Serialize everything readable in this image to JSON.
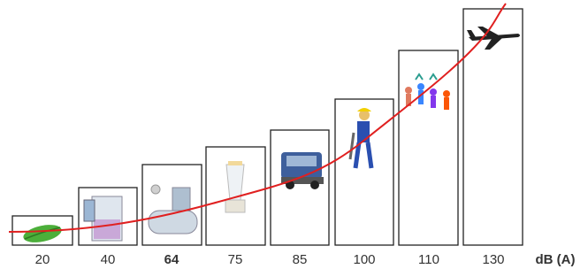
{
  "levels": [
    "20",
    "40",
    "64",
    "75",
    "85",
    "100",
    "110",
    "130"
  ],
  "unit": "dB (A)"
}
